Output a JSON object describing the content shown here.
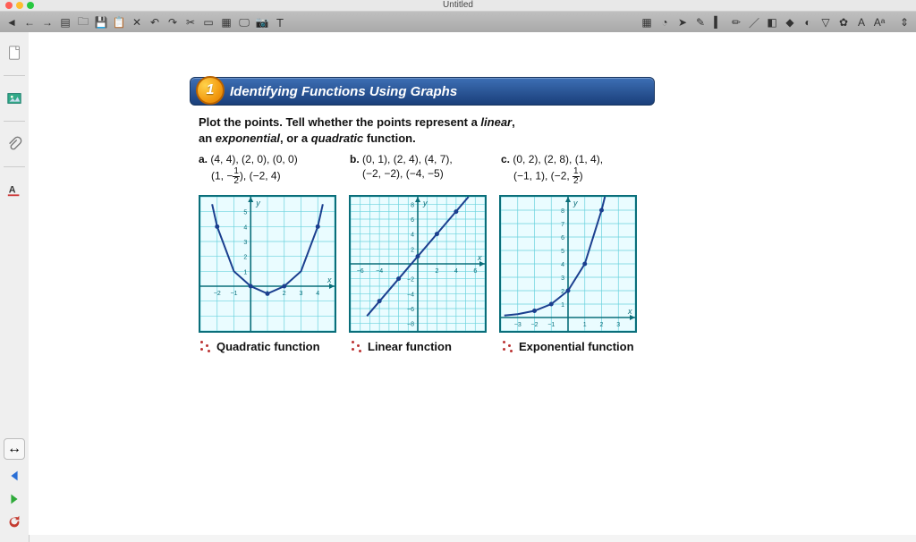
{
  "window": {
    "title": "Untitled"
  },
  "mac_dots": [
    "#ff5f57",
    "#febc2e",
    "#28c840"
  ],
  "toolbar_left_icons": [
    "cursor",
    "arrow-left",
    "arrow-right",
    "doc-new",
    "folder-open",
    "save",
    "paste",
    "tools",
    "undo",
    "redo",
    "cut",
    "monitor",
    "slide",
    "screen",
    "camera",
    "text-tool"
  ],
  "toolbar_right_icons": [
    "grid",
    "clock",
    "pointer",
    "pen",
    "highlighter",
    "pencil",
    "line",
    "eraser",
    "shape",
    "fill",
    "bucket",
    "stamp",
    "text-a",
    "text-style"
  ],
  "side_icons": [
    "page",
    "image",
    "attachment",
    "text-style"
  ],
  "side_mid_icon": "expand",
  "side_bottom_icons": [
    "arrow-left-blue",
    "arrow-right-green",
    "refresh-red"
  ],
  "section": {
    "num": "1",
    "title": "Identifying Functions Using Graphs"
  },
  "instruction_html": "Plot the points. Tell whether the points represent a <em>linear</em>,<br>an <em>exponential</em>, or a <em>quadratic</em> function.",
  "problems": [
    {
      "label": "a.",
      "pts1": "(4, 4), (2, 0), (0, 0)",
      "pts2_pre": "(1, −",
      "pts2_frac_n": "1",
      "pts2_frac_d": "2",
      "pts2_post": "), (−2, 4)"
    },
    {
      "label": "b.",
      "pts1": "(0, 1), (2, 4), (4, 7),",
      "pts2": "(−2, −2), (−4, −5)"
    },
    {
      "label": "c.",
      "pts1": "(0, 2), (2, 8), (1, 4),",
      "pts2_pre": "(−1, 1), (−2, ",
      "pts2_frac_n": "1",
      "pts2_frac_d": "2",
      "pts2_post": ")"
    }
  ],
  "graphs": {
    "grid_color": "#6bd3de",
    "axis_color": "#0a6e7a",
    "curve_color": "#1b3f8f",
    "bg": "#eafcff",
    "a": {
      "type": "quadratic",
      "xlim": [
        -3,
        5
      ],
      "ylim": [
        -3,
        6
      ],
      "xticks": [
        -2,
        -1,
        1,
        2,
        3,
        4
      ],
      "yticks": [
        1,
        2,
        3,
        4,
        5
      ],
      "points": [
        [
          -2,
          4
        ],
        [
          0,
          0
        ],
        [
          1,
          -0.5
        ],
        [
          2,
          0
        ],
        [
          4,
          4
        ]
      ],
      "curve": [
        [
          -2.3,
          5.5
        ],
        [
          -2,
          4
        ],
        [
          -1,
          1
        ],
        [
          0,
          0
        ],
        [
          1,
          -0.5
        ],
        [
          2,
          0
        ],
        [
          3,
          1
        ],
        [
          4,
          4
        ],
        [
          4.3,
          5.5
        ]
      ],
      "labels": {
        "x": "x",
        "y": "y"
      }
    },
    "b": {
      "type": "linear",
      "xlim": [
        -7,
        7
      ],
      "ylim": [
        -9,
        9
      ],
      "xticks": [
        -6,
        -4,
        2,
        4,
        6
      ],
      "yticks": [
        2,
        4,
        6,
        8,
        -2,
        -4,
        -6,
        -8
      ],
      "points": [
        [
          -4,
          -5
        ],
        [
          -2,
          -2
        ],
        [
          0,
          1
        ],
        [
          2,
          4
        ],
        [
          4,
          7
        ]
      ],
      "curve": [
        [
          -5.3,
          -7
        ],
        [
          5.3,
          9
        ]
      ],
      "labels": {
        "x": "x",
        "y": "y"
      }
    },
    "c": {
      "type": "exponential",
      "xlim": [
        -4,
        4
      ],
      "ylim": [
        -1,
        9
      ],
      "xticks": [
        -3,
        -2,
        -1,
        1,
        2,
        3
      ],
      "yticks": [
        1,
        2,
        3,
        4,
        5,
        6,
        7,
        8
      ],
      "points": [
        [
          -2,
          0.5
        ],
        [
          -1,
          1
        ],
        [
          0,
          2
        ],
        [
          1,
          4
        ],
        [
          2,
          8
        ]
      ],
      "curve": [
        [
          -3.8,
          0.15
        ],
        [
          -3,
          0.25
        ],
        [
          -2,
          0.5
        ],
        [
          -1,
          1
        ],
        [
          0,
          2
        ],
        [
          1,
          4
        ],
        [
          2,
          8
        ],
        [
          2.2,
          9
        ]
      ],
      "labels": {
        "x": "x",
        "y": "y"
      }
    }
  },
  "answers": [
    "Quadratic function",
    "Linear function",
    "Exponential function"
  ],
  "colors": {
    "toolbar_icon": "#444",
    "side_icon": "#555",
    "blue": "#2a6fd6",
    "green": "#2faa3a",
    "red": "#c43a2f"
  }
}
